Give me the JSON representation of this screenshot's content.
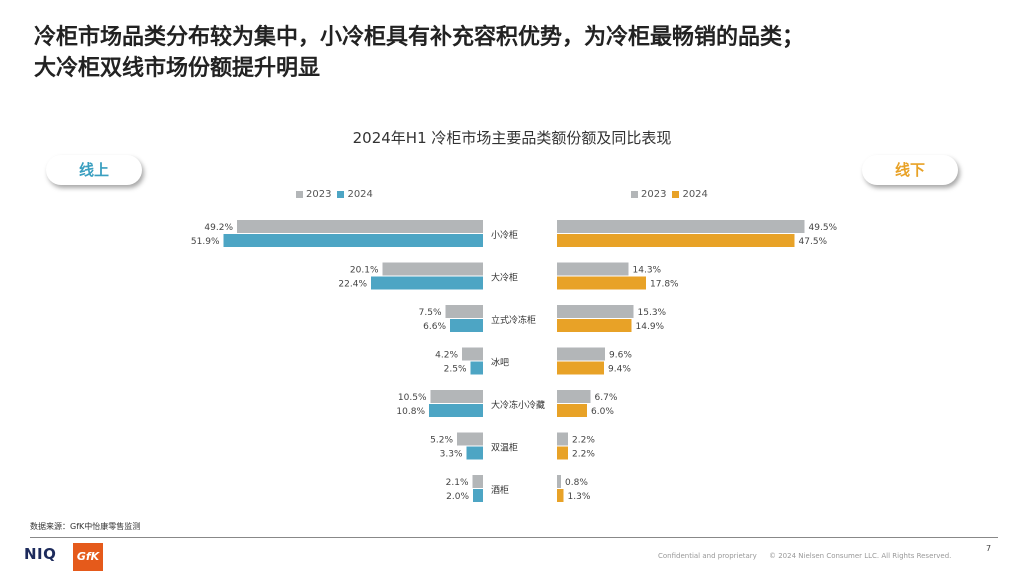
{
  "headline": {
    "line1": "冷柜市场品类分布较为集中，小冷柜具有补充容积优势，为冷柜最畅销的品类；",
    "line2": "大冷柜双线市场份额提升明显"
  },
  "online_label": "线上",
  "offline_label": "线下",
  "colors": {
    "y2023": "#b3b6b8",
    "online2024": "#4da5c4",
    "offline2024": "#e8a227"
  },
  "chart_data": {
    "type": "bar",
    "title": "2024年H1 冷柜市场主要品类额份额及同比表现",
    "categories": [
      "小冷柜",
      "大冷柜",
      "立式冷冻柜",
      "冰吧",
      "大冷冻小冷藏",
      "双温柜",
      "酒柜"
    ],
    "online": {
      "series": [
        {
          "name": "2023",
          "values": [
            49.2,
            20.1,
            7.5,
            4.2,
            10.5,
            5.2,
            2.1
          ],
          "labels": [
            "49.2%",
            "20.1%",
            "7.5%",
            "4.2%",
            "10.5%",
            "5.2%",
            "2.1%"
          ]
        },
        {
          "name": "2024",
          "values": [
            51.9,
            22.4,
            6.6,
            2.5,
            10.8,
            3.3,
            2.0
          ],
          "labels": [
            "51.9%",
            "22.4%",
            "6.6%",
            "2.5%",
            "10.8%",
            "3.3%",
            "2.0%"
          ]
        }
      ]
    },
    "offline": {
      "series": [
        {
          "name": "2023",
          "values": [
            49.5,
            14.3,
            15.3,
            9.6,
            6.7,
            2.2,
            0.8
          ],
          "labels": [
            "49.5%",
            "14.3%",
            "15.3%",
            "9.6%",
            "6.7%",
            "2.2%",
            "0.8%"
          ]
        },
        {
          "name": "2024",
          "values": [
            47.5,
            17.8,
            14.9,
            9.4,
            6.0,
            2.2,
            1.3
          ],
          "labels": [
            "47.5%",
            "17.8%",
            "14.9%",
            "9.4%",
            "6.0%",
            "2.2%",
            "1.3%"
          ]
        }
      ]
    },
    "legend_placement": "top"
  },
  "footer": {
    "source": "数据来源：GfK中怡康零售监测",
    "niq": "NIQ",
    "gfk": "GfK",
    "confidential": "Confidential and proprietary",
    "copyright": "© 2024 Nielsen Consumer LLC. All Rights Reserved.",
    "page": "7"
  }
}
